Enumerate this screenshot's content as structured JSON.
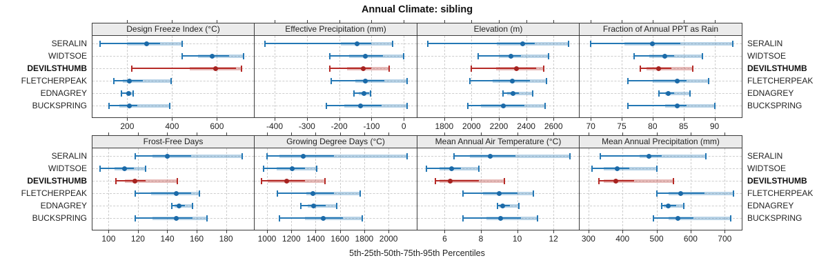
{
  "title": "Annual Climate: sibling",
  "caption": "5th-25th-50th-75th-95th Percentiles",
  "stations": [
    "SERALIN",
    "WIDTSOE",
    "DEVILSTHUMB",
    "FLETCHERPEAK",
    "EDNAGREY",
    "BUCKSPRING"
  ],
  "highlight_station": "DEVILSTHUMB",
  "colors": {
    "series_line": "#2377b4",
    "series_dot": "#1b6aa8",
    "series_band": "rgba(35,119,180,0.32)",
    "highlight_line": "#b52a26",
    "highlight_dot": "#a62320",
    "highlight_band": "rgba(181,42,38,0.32)",
    "grid": "#cdcdcd",
    "panel_border": "#3a3a3a",
    "header_bg": "#ebebeb"
  },
  "chart_data": {
    "type": "interval-dotplot",
    "percentile_levels": [
      5,
      25,
      50,
      75,
      95
    ],
    "layout": "2 rows x 4 columns of panels, shared station rows, category labels on both left and right",
    "panels": [
      {
        "title": "Design Freeze Index (°C)",
        "ticks": [
          200,
          400,
          600
        ],
        "xlim": [
          45,
          765
        ],
        "values": {
          "SERALIN": [
            80,
            200,
            285,
            345,
            445
          ],
          "WIDTSOE": [
            445,
            515,
            580,
            655,
            720
          ],
          "DEVILSTHUMB": [
            220,
            480,
            595,
            685,
            710
          ],
          "FLETCHERPEAK": [
            140,
            180,
            210,
            270,
            395
          ],
          "EDNAGREY": [
            175,
            195,
            205,
            215,
            225
          ],
          "BUCKSPRING": [
            120,
            165,
            210,
            245,
            390
          ]
        }
      },
      {
        "title": "Effective Precipitation (mm)",
        "ticks": [
          -400,
          -300,
          -200,
          -100,
          0
        ],
        "xlim": [
          -462,
          40
        ],
        "values": {
          "SERALIN": [
            -430,
            -195,
            -145,
            -100,
            -35
          ],
          "WIDTSOE": [
            -230,
            -170,
            -120,
            -65,
            0
          ],
          "DEVILSTHUMB": [
            -230,
            -175,
            -125,
            -100,
            -45
          ],
          "FLETCHERPEAK": [
            -225,
            -150,
            -120,
            -60,
            10
          ],
          "EDNAGREY": [
            -155,
            -140,
            -123,
            -108,
            -103
          ],
          "BUCKSPRING": [
            -240,
            -185,
            -135,
            -70,
            10
          ]
        }
      },
      {
        "title": "Elevation (m)",
        "ticks": [
          1800,
          2000,
          2200,
          2400,
          2600
        ],
        "xlim": [
          1604,
          2786
        ],
        "values": {
          "SERALIN": [
            1680,
            2185,
            2375,
            2465,
            2710
          ],
          "WIDTSOE": [
            2050,
            2205,
            2290,
            2360,
            2565
          ],
          "DEVILSTHUMB": [
            2000,
            2180,
            2330,
            2475,
            2530
          ],
          "FLETCHERPEAK": [
            1990,
            2155,
            2300,
            2425,
            2550
          ],
          "EDNAGREY": [
            2230,
            2260,
            2305,
            2345,
            2450
          ],
          "BUCKSPRING": [
            1975,
            2070,
            2235,
            2385,
            2540
          ]
        }
      },
      {
        "title": "Fraction of Annual PPT as Rain",
        "ticks": [
          70,
          75,
          80,
          85,
          90
        ],
        "xlim": [
          68.2,
          94.4
        ],
        "values": {
          "SERALIN": [
            70,
            75.5,
            80,
            84.5,
            93
          ],
          "WIDTSOE": [
            77,
            79.5,
            82,
            83.5,
            88
          ],
          "DEVILSTHUMB": [
            78,
            79,
            81,
            83,
            86.5
          ],
          "FLETCHERPEAK": [
            76,
            80,
            84,
            85.5,
            89
          ],
          "EDNAGREY": [
            81,
            82,
            82.5,
            83.5,
            86
          ],
          "BUCKSPRING": [
            76,
            82,
            84,
            85.5,
            90
          ]
        }
      },
      {
        "title": "Frost-Free Days",
        "ticks": [
          100,
          120,
          140,
          160,
          180
        ],
        "xlim": [
          89,
          199
        ],
        "values": {
          "SERALIN": [
            118,
            130,
            140,
            156,
            191
          ],
          "WIDTSOE": [
            94,
            104,
            111,
            117,
            125
          ],
          "DEVILSTHUMB": [
            105,
            111,
            118,
            125,
            147
          ],
          "FLETCHERPEAK": [
            118,
            129,
            146,
            156,
            162
          ],
          "EDNAGREY": [
            143,
            145,
            148,
            152,
            157
          ],
          "BUCKSPRING": [
            118,
            130,
            146,
            157,
            167
          ]
        }
      },
      {
        "title": "Growing Degree Days (°C)",
        "ticks": [
          1000,
          1200,
          1400,
          1600,
          1800,
          2000
        ],
        "xlim": [
          898,
          2232
        ],
        "values": {
          "SERALIN": [
            1000,
            1100,
            1300,
            1550,
            2150
          ],
          "WIDTSOE": [
            970,
            1080,
            1210,
            1315,
            1410
          ],
          "DEVILSTHUMB": [
            955,
            1005,
            1160,
            1315,
            1475
          ],
          "FLETCHERPEAK": [
            1085,
            1325,
            1380,
            1550,
            1765
          ],
          "EDNAGREY": [
            1280,
            1335,
            1385,
            1485,
            1575
          ],
          "BUCKSPRING": [
            1105,
            1315,
            1465,
            1625,
            1785
          ]
        }
      },
      {
        "title": "Mean Annual Air Temperature (°C)",
        "ticks": [
          6,
          8,
          10,
          12
        ],
        "xlim": [
          4.5,
          13.4
        ],
        "values": {
          "SERALIN": [
            6.5,
            7.4,
            8.5,
            9.9,
            12.9
          ],
          "WIDTSOE": [
            5.0,
            5.7,
            6.4,
            6.9,
            7.9
          ],
          "DEVILSTHUMB": [
            5.5,
            5.7,
            6.3,
            7.9,
            9.3
          ],
          "FLETCHERPEAK": [
            7.0,
            8.1,
            9.0,
            10.0,
            10.9
          ],
          "EDNAGREY": [
            8.9,
            9.0,
            9.2,
            9.6,
            10.1
          ],
          "BUCKSPRING": [
            7.0,
            8.3,
            9.1,
            10.2,
            11.1
          ]
        }
      },
      {
        "title": "Mean Annual Precipitation (mm)",
        "ticks": [
          300,
          400,
          500,
          600,
          700
        ],
        "xlim": [
          274,
          750
        ],
        "values": {
          "SERALIN": [
            335,
            450,
            478,
            515,
            645
          ],
          "WIDTSOE": [
            310,
            345,
            385,
            420,
            500
          ],
          "DEVILSTHUMB": [
            330,
            345,
            380,
            435,
            550
          ],
          "FLETCHERPEAK": [
            500,
            535,
            570,
            640,
            725
          ],
          "EDNAGREY": [
            515,
            522,
            535,
            557,
            580
          ],
          "BUCKSPRING": [
            490,
            535,
            562,
            608,
            718
          ]
        }
      }
    ]
  }
}
